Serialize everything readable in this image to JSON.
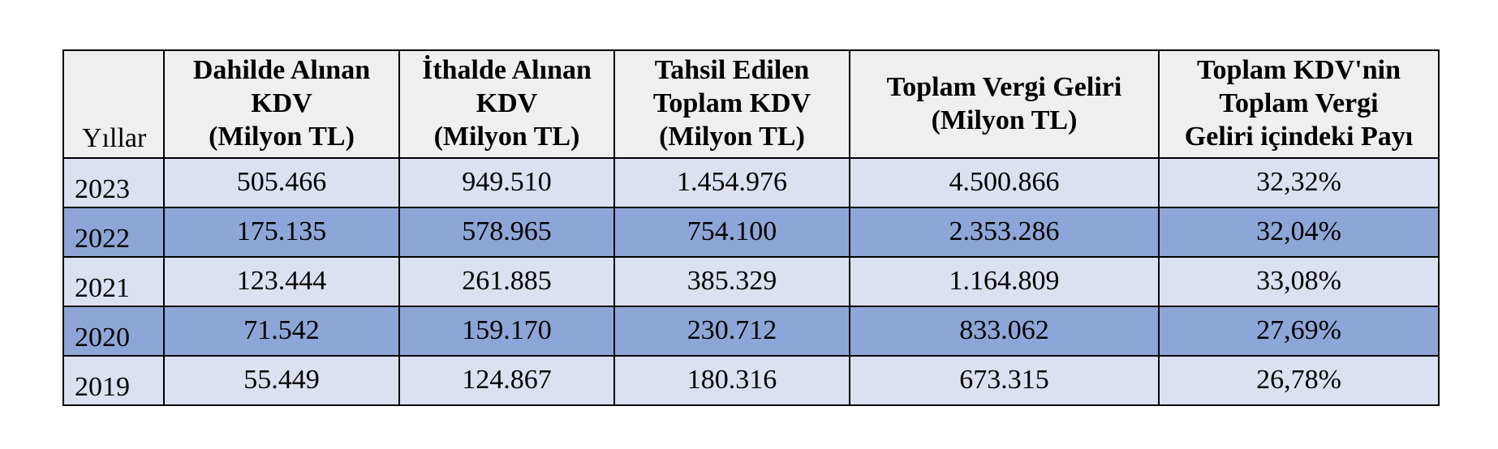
{
  "table": {
    "headers": [
      {
        "lines": [
          "Yıllar"
        ]
      },
      {
        "lines": [
          "Dahilde Alınan",
          "KDV",
          "(Milyon TL)"
        ]
      },
      {
        "lines": [
          "İthalde Alınan",
          "KDV",
          "(Milyon TL)"
        ]
      },
      {
        "lines": [
          "Tahsil Edilen",
          "Toplam KDV",
          "(Milyon TL)"
        ]
      },
      {
        "lines": [
          "Toplam Vergi Geliri",
          "(Milyon TL)"
        ]
      },
      {
        "lines": [
          "Toplam KDV'nin",
          "Toplam Vergi",
          "Geliri içindeki Payı"
        ]
      }
    ],
    "rows": [
      [
        "2023",
        "505.466",
        "949.510",
        "1.454.976",
        "4.500.866",
        "32,32%"
      ],
      [
        "2022",
        "175.135",
        "578.965",
        "754.100",
        "2.353.286",
        "32,04%"
      ],
      [
        "2021",
        "123.444",
        "261.885",
        "385.329",
        "1.164.809",
        "33,08%"
      ],
      [
        "2020",
        "71.542",
        "159.170",
        "230.712",
        "833.062",
        "27,69%"
      ],
      [
        "2019",
        "55.449",
        "124.867",
        "180.316",
        "673.315",
        "26,78%"
      ]
    ],
    "row_colors": {
      "light": "#dbe1f1",
      "dark": "#8ea6d7",
      "header": "#efefef"
    }
  }
}
